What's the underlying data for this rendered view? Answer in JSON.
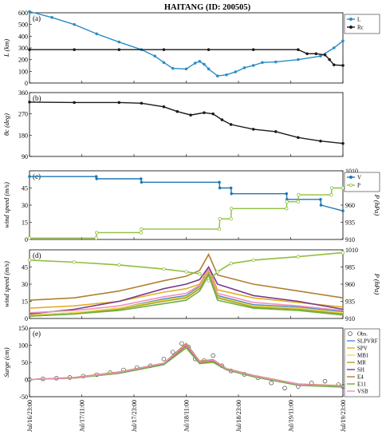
{
  "title": "HAITANG (ID: 200505)",
  "x_ticks": [
    "Jul/16/23:00",
    "Jul/17/11:00",
    "Jul/17/23:00",
    "Jul/18/11:00",
    "Jul/18/23:00",
    "Jul/19/11:00",
    "Jul/19/23:00"
  ],
  "colors": {
    "L": "#2b8cc4",
    "Rc": "#1a1a1a",
    "theta": "#1a1a1a",
    "V": "#1f78b4",
    "P": "#8fbf3f",
    "SLPVRF": "#4a8fd0",
    "SPV": "#e0b020",
    "MB1": "#f0e040",
    "MR": "#b0a030",
    "SH": "#7a3a8a",
    "E4": "#b08030",
    "E11": "#6ab040",
    "VSB": "#f090c0"
  },
  "chart_data": [
    {
      "type": "line",
      "panel": "(a)",
      "ylabel": "L (km)",
      "ylim": [
        0,
        600
      ],
      "yticks": [
        0,
        100,
        200,
        300,
        400,
        500,
        600
      ],
      "series": [
        {
          "name": "L",
          "x": [
            0.0,
            0.5,
            1.0,
            1.5,
            2.0,
            2.5,
            2.8,
            3.0,
            3.2,
            3.5,
            3.7,
            3.8,
            3.9,
            4.0,
            4.2,
            4.4,
            4.6,
            4.8,
            5.0,
            5.2,
            5.5,
            6.0,
            6.5,
            6.8,
            7.0
          ],
          "values": [
            610,
            560,
            500,
            420,
            350,
            285,
            230,
            175,
            125,
            120,
            170,
            185,
            160,
            120,
            60,
            70,
            95,
            130,
            150,
            175,
            180,
            200,
            230,
            300,
            360
          ]
        },
        {
          "name": "Rc",
          "x": [
            0.0,
            1.0,
            2.0,
            3.0,
            4.0,
            5.0,
            6.0,
            6.2,
            6.4,
            6.6,
            6.7,
            6.8,
            7.0
          ],
          "values": [
            285,
            285,
            285,
            285,
            285,
            285,
            285,
            250,
            250,
            240,
            200,
            155,
            150
          ]
        }
      ]
    },
    {
      "type": "line",
      "panel": "(b)",
      "ylabel": "θc (deg)",
      "ylim": [
        90,
        360
      ],
      "yticks": [
        90,
        180,
        270,
        360
      ],
      "series": [
        {
          "name": "θc",
          "x": [
            0.0,
            1.0,
            2.0,
            2.5,
            3.0,
            3.3,
            3.6,
            3.9,
            4.1,
            4.3,
            4.5,
            5.0,
            5.5,
            6.0,
            6.5,
            7.0
          ],
          "values": [
            320,
            318,
            318,
            315,
            300,
            280,
            265,
            275,
            270,
            245,
            225,
            205,
            195,
            170,
            155,
            145
          ]
        }
      ]
    },
    {
      "type": "line",
      "panel": "(c)",
      "ylabel": "wind speed (m/s)",
      "ylabel2": "P (hPa)",
      "ylim": [
        0,
        60
      ],
      "ylim2": [
        910,
        1010
      ],
      "yticks": [
        0,
        15,
        30,
        45
      ],
      "yticks2": [
        910,
        935,
        960,
        985,
        1010
      ],
      "series": [
        {
          "name": "V",
          "axis": "left",
          "x": [
            0.0,
            1.49,
            1.5,
            2.49,
            2.5,
            4.24,
            4.25,
            4.5,
            4.51,
            5.74,
            5.75,
            6.5,
            6.51,
            7.0
          ],
          "values": [
            55,
            55,
            53,
            53,
            50,
            50,
            45,
            45,
            40,
            40,
            35,
            35,
            30,
            25
          ]
        },
        {
          "name": "P",
          "axis": "right",
          "x": [
            0.0,
            1.49,
            1.5,
            2.49,
            2.5,
            4.24,
            4.25,
            4.5,
            4.51,
            5.74,
            5.75,
            6.0,
            6.01,
            6.74,
            6.75,
            7.0
          ],
          "values": [
            912,
            912,
            920,
            920,
            925,
            925,
            940,
            940,
            955,
            955,
            965,
            965,
            975,
            975,
            985,
            985
          ]
        }
      ]
    },
    {
      "type": "line",
      "panel": "(d)",
      "ylabel": "wind speed (m/s)",
      "ylabel2": "P (hPa)",
      "ylim": [
        0,
        60
      ],
      "ylim2": [
        910,
        1010
      ],
      "yticks": [
        0,
        15,
        30,
        45
      ],
      "yticks2": [
        910,
        935,
        960,
        985,
        1010
      ],
      "series": [
        {
          "name": "SLPVRF",
          "x": [
            0,
            1,
            2,
            3,
            3.5,
            3.8,
            4.0,
            4.2,
            5,
            6,
            7
          ],
          "values": [
            3,
            5,
            9,
            17,
            20,
            28,
            42,
            20,
            12,
            10,
            6
          ]
        },
        {
          "name": "SPV",
          "x": [
            0,
            1,
            2,
            3,
            3.5,
            3.8,
            4.0,
            4.2,
            5,
            6,
            7
          ],
          "values": [
            9,
            11,
            15,
            23,
            26,
            30,
            44,
            25,
            18,
            14,
            10
          ]
        },
        {
          "name": "MB1",
          "x": [
            0,
            1,
            2,
            3,
            3.5,
            3.8,
            4.0,
            4.2,
            5,
            6,
            7
          ],
          "values": [
            3,
            5,
            9,
            16,
            19,
            27,
            41,
            19,
            11,
            9,
            5
          ]
        },
        {
          "name": "MR",
          "x": [
            0,
            1,
            2,
            3,
            3.5,
            3.8,
            4.0,
            4.2,
            5,
            6,
            7
          ],
          "values": [
            2,
            4,
            8,
            15,
            18,
            26,
            40,
            18,
            10,
            8,
            4
          ]
        },
        {
          "name": "SH",
          "x": [
            0,
            1,
            2,
            3,
            3.5,
            3.8,
            4.0,
            4.2,
            5,
            6,
            7
          ],
          "values": [
            4,
            8,
            15,
            26,
            30,
            34,
            45,
            30,
            20,
            15,
            8
          ]
        },
        {
          "name": "E4",
          "x": [
            0,
            1,
            2,
            3,
            3.5,
            3.8,
            4.0,
            4.2,
            5,
            6,
            7
          ],
          "values": [
            16,
            18,
            24,
            33,
            37,
            42,
            56,
            38,
            30,
            24,
            18
          ]
        },
        {
          "name": "E11",
          "x": [
            0,
            1,
            2,
            3,
            3.5,
            3.8,
            4.0,
            4.2,
            5,
            6,
            7
          ],
          "values": [
            2,
            4,
            7,
            13,
            16,
            24,
            38,
            16,
            9,
            7,
            3
          ]
        },
        {
          "name": "VSB",
          "x": [
            0,
            1,
            2,
            3,
            3.5,
            3.8,
            4.0,
            4.2,
            5,
            6,
            7
          ],
          "values": [
            5,
            7,
            11,
            19,
            22,
            29,
            43,
            22,
            14,
            11,
            7
          ]
        },
        {
          "name": "P",
          "axis": "right",
          "x": [
            0,
            1,
            2,
            3,
            3.5,
            3.8,
            4.0,
            4.2,
            4.5,
            5,
            6,
            7
          ],
          "values": [
            995,
            992,
            988,
            982,
            978,
            975,
            965,
            978,
            990,
            995,
            1000,
            1006
          ]
        }
      ]
    },
    {
      "type": "line",
      "panel": "(e)",
      "ylabel": "Surge (cm)",
      "ylim": [
        -50,
        150
      ],
      "yticks": [
        -50,
        0,
        50,
        100,
        150
      ],
      "series": [
        {
          "name": "Obs.",
          "style": "markers",
          "x": [
            0,
            0.3,
            0.6,
            0.9,
            1.2,
            1.5,
            1.8,
            2.1,
            2.4,
            2.7,
            3.0,
            3.2,
            3.4,
            3.55,
            3.7,
            3.9,
            4.1,
            4.3,
            4.5,
            4.8,
            5.1,
            5.4,
            5.7,
            6.0,
            6.3,
            6.6,
            6.9,
            7.0
          ],
          "values": [
            0,
            2,
            4,
            6,
            10,
            14,
            20,
            28,
            35,
            40,
            60,
            80,
            105,
            95,
            60,
            55,
            70,
            40,
            25,
            15,
            5,
            -10,
            -25,
            -20,
            -10,
            -5,
            -15,
            -20
          ]
        },
        {
          "name": "SLPVRF",
          "x": [
            0,
            1,
            2,
            3,
            3.5,
            3.8,
            4.1,
            4.4,
            5,
            6,
            7
          ],
          "values": [
            0,
            5,
            20,
            45,
            100,
            50,
            55,
            30,
            10,
            -15,
            -20
          ]
        },
        {
          "name": "SPV",
          "x": [
            0,
            1,
            2,
            3,
            3.5,
            3.8,
            4.1,
            4.4,
            5,
            6,
            7
          ],
          "values": [
            0,
            6,
            21,
            46,
            102,
            52,
            56,
            31,
            11,
            -14,
            -19
          ]
        },
        {
          "name": "MB1",
          "x": [
            0,
            1,
            2,
            3,
            3.5,
            3.8,
            4.1,
            4.4,
            5,
            6,
            7
          ],
          "values": [
            0,
            4,
            19,
            44,
            95,
            48,
            52,
            29,
            9,
            -16,
            -21
          ]
        },
        {
          "name": "MR",
          "x": [
            0,
            1,
            2,
            3,
            3.5,
            3.8,
            4.1,
            4.4,
            5,
            6,
            7
          ],
          "values": [
            0,
            5,
            20,
            45,
            98,
            50,
            54,
            30,
            10,
            -15,
            -20
          ]
        },
        {
          "name": "SH",
          "x": [
            0,
            1,
            2,
            3,
            3.5,
            3.8,
            4.1,
            4.4,
            5,
            6,
            7
          ],
          "values": [
            0,
            5,
            20,
            46,
            99,
            51,
            55,
            30,
            10,
            -15,
            -20
          ]
        },
        {
          "name": "E4",
          "x": [
            0,
            1,
            2,
            3,
            3.5,
            3.8,
            4.1,
            4.4,
            5,
            6,
            7
          ],
          "values": [
            0,
            6,
            22,
            48,
            105,
            54,
            58,
            32,
            12,
            -13,
            -18
          ]
        },
        {
          "name": "E11",
          "x": [
            0,
            1,
            2,
            3,
            3.5,
            3.8,
            4.1,
            4.4,
            5,
            6,
            7
          ],
          "values": [
            0,
            4,
            18,
            43,
            92,
            46,
            50,
            28,
            8,
            -17,
            -22
          ]
        },
        {
          "name": "VSB",
          "x": [
            0,
            1,
            2,
            3,
            3.5,
            3.8,
            4.1,
            4.4,
            5,
            6,
            7
          ],
          "values": [
            0,
            5,
            21,
            47,
            101,
            52,
            56,
            31,
            11,
            -14,
            -19
          ]
        }
      ]
    }
  ],
  "legends": {
    "a": [
      "L",
      "Rc"
    ],
    "c": [
      "V",
      "P"
    ],
    "e": [
      "Obs.",
      "SLPVRF",
      "SPV",
      "MB1",
      "MR",
      "SH",
      "E4",
      "E11",
      "VSB"
    ]
  }
}
